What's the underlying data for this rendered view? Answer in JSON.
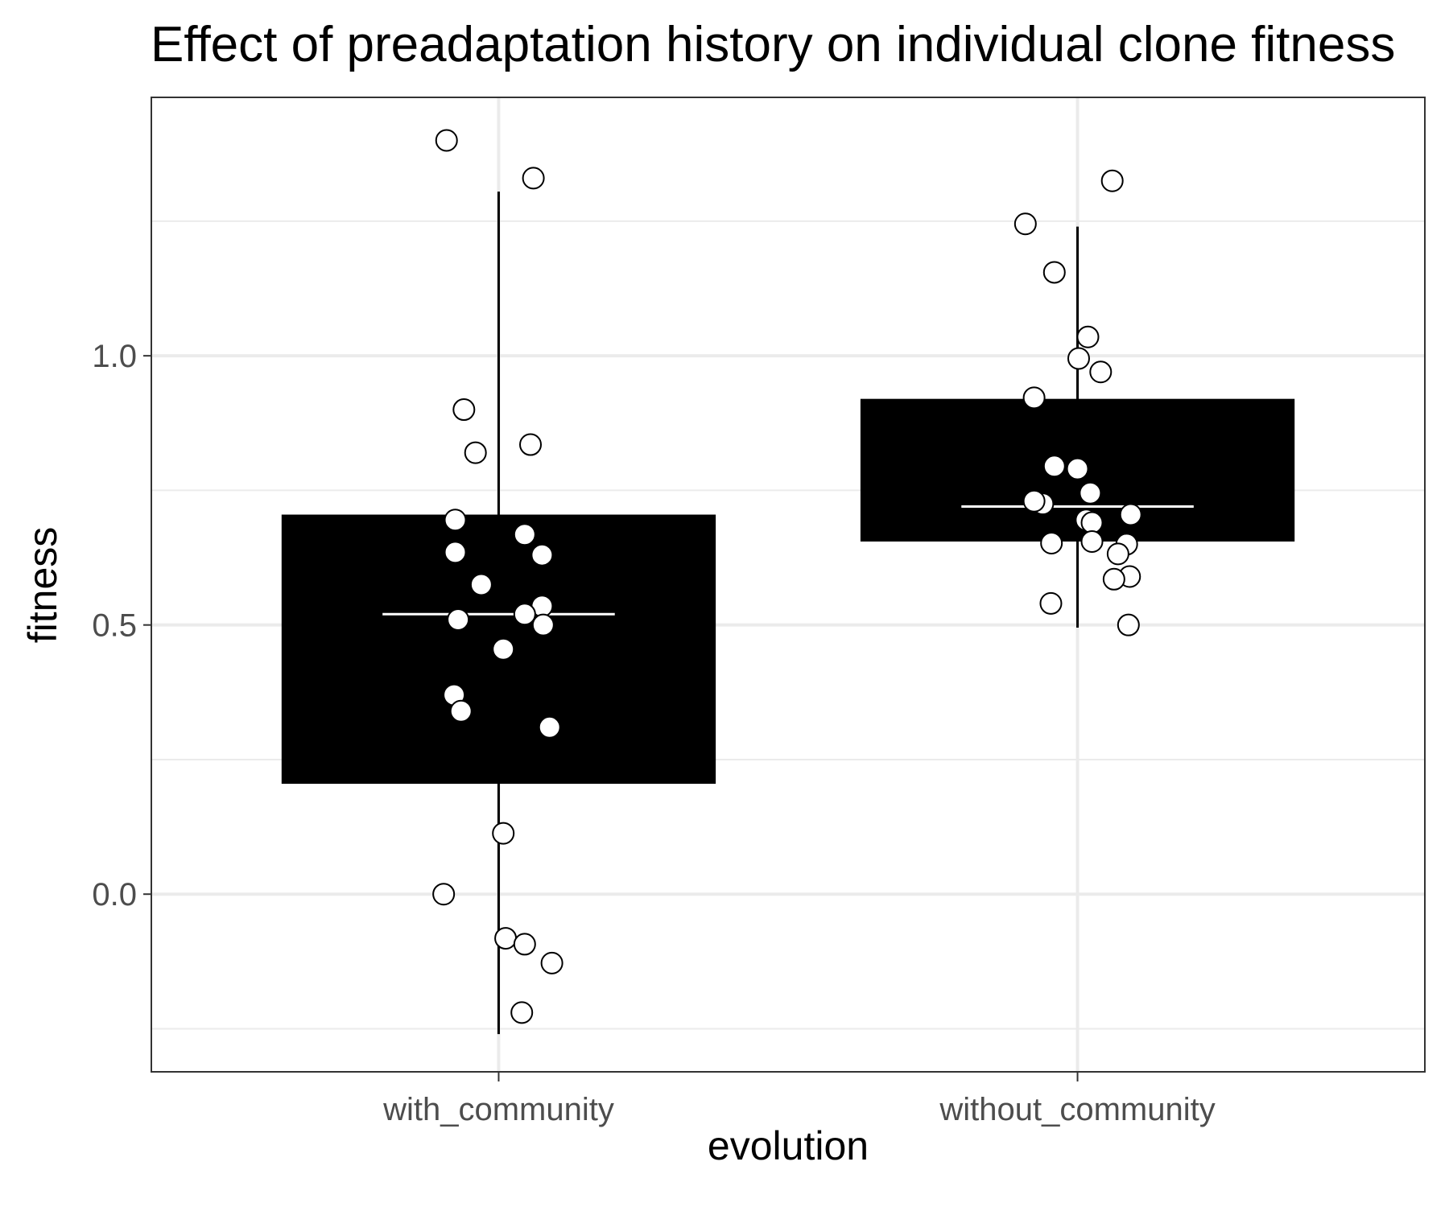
{
  "chart_data": {
    "type": "box",
    "title": "Effect of preadaptation history on individual clone fitness",
    "xlabel": "evolution",
    "ylabel": "fitness",
    "categories": [
      "with_community",
      "without_community"
    ],
    "ylim": [
      -0.33,
      1.48
    ],
    "yticks": [
      0.0,
      0.5,
      1.0
    ],
    "ytick_labels": [
      "0.0",
      "0.5",
      "1.0"
    ],
    "grid": true,
    "colors": {
      "box_fill": "#000000",
      "median_line": "#ffffff",
      "point_fill": "#ffffff",
      "point_stroke": "#000000",
      "grid_major": "#ebebeb",
      "grid_minor": "#ebebeb",
      "panel_border": "#333333"
    },
    "boxes": [
      {
        "category": "with_community",
        "whisker_low": -0.26,
        "q1": 0.205,
        "median": 0.52,
        "q3": 0.705,
        "whisker_high": 1.305
      },
      {
        "category": "without_community",
        "whisker_low": 0.495,
        "q1": 0.655,
        "median": 0.72,
        "q3": 0.92,
        "whisker_high": 1.24
      }
    ],
    "points": [
      {
        "category": "with_community",
        "jitter": -0.09,
        "y": 1.4
      },
      {
        "category": "with_community",
        "jitter": 0.06,
        "y": 1.33
      },
      {
        "category": "with_community",
        "jitter": -0.06,
        "y": 0.9
      },
      {
        "category": "with_community",
        "jitter": -0.04,
        "y": 0.82
      },
      {
        "category": "with_community",
        "jitter": 0.055,
        "y": 0.835
      },
      {
        "category": "with_community",
        "jitter": -0.075,
        "y": 0.695
      },
      {
        "category": "with_community",
        "jitter": 0.045,
        "y": 0.668
      },
      {
        "category": "with_community",
        "jitter": -0.075,
        "y": 0.635
      },
      {
        "category": "with_community",
        "jitter": 0.075,
        "y": 0.63
      },
      {
        "category": "with_community",
        "jitter": -0.03,
        "y": 0.575
      },
      {
        "category": "with_community",
        "jitter": 0.075,
        "y": 0.535
      },
      {
        "category": "with_community",
        "jitter": 0.045,
        "y": 0.52
      },
      {
        "category": "with_community",
        "jitter": -0.07,
        "y": 0.51
      },
      {
        "category": "with_community",
        "jitter": 0.077,
        "y": 0.5
      },
      {
        "category": "with_community",
        "jitter": 0.008,
        "y": 0.455
      },
      {
        "category": "with_community",
        "jitter": -0.077,
        "y": 0.37
      },
      {
        "category": "with_community",
        "jitter": -0.065,
        "y": 0.34
      },
      {
        "category": "with_community",
        "jitter": 0.088,
        "y": 0.31
      },
      {
        "category": "with_community",
        "jitter": 0.008,
        "y": 0.113
      },
      {
        "category": "with_community",
        "jitter": -0.095,
        "y": 0.0
      },
      {
        "category": "with_community",
        "jitter": 0.012,
        "y": -0.082
      },
      {
        "category": "with_community",
        "jitter": 0.045,
        "y": -0.093
      },
      {
        "category": "with_community",
        "jitter": 0.092,
        "y": -0.128
      },
      {
        "category": "with_community",
        "jitter": 0.04,
        "y": -0.22
      },
      {
        "category": "without_community",
        "jitter": 0.06,
        "y": 1.325
      },
      {
        "category": "without_community",
        "jitter": -0.09,
        "y": 1.245
      },
      {
        "category": "without_community",
        "jitter": -0.04,
        "y": 1.155
      },
      {
        "category": "without_community",
        "jitter": 0.018,
        "y": 1.035
      },
      {
        "category": "without_community",
        "jitter": 0.002,
        "y": 0.995
      },
      {
        "category": "without_community",
        "jitter": 0.04,
        "y": 0.97
      },
      {
        "category": "without_community",
        "jitter": -0.075,
        "y": 0.922
      },
      {
        "category": "without_community",
        "jitter": -0.04,
        "y": 0.795
      },
      {
        "category": "without_community",
        "jitter": 0.0,
        "y": 0.79
      },
      {
        "category": "without_community",
        "jitter": 0.022,
        "y": 0.745
      },
      {
        "category": "without_community",
        "jitter": -0.06,
        "y": 0.725
      },
      {
        "category": "without_community",
        "jitter": -0.075,
        "y": 0.73
      },
      {
        "category": "without_community",
        "jitter": 0.092,
        "y": 0.705
      },
      {
        "category": "without_community",
        "jitter": 0.015,
        "y": 0.695
      },
      {
        "category": "without_community",
        "jitter": 0.025,
        "y": 0.69
      },
      {
        "category": "without_community",
        "jitter": -0.045,
        "y": 0.652
      },
      {
        "category": "without_community",
        "jitter": 0.025,
        "y": 0.655
      },
      {
        "category": "without_community",
        "jitter": 0.085,
        "y": 0.65
      },
      {
        "category": "without_community",
        "jitter": 0.07,
        "y": 0.632
      },
      {
        "category": "without_community",
        "jitter": 0.09,
        "y": 0.59
      },
      {
        "category": "without_community",
        "jitter": 0.063,
        "y": 0.585
      },
      {
        "category": "without_community",
        "jitter": -0.046,
        "y": 0.54
      },
      {
        "category": "without_community",
        "jitter": 0.088,
        "y": 0.5
      }
    ]
  }
}
